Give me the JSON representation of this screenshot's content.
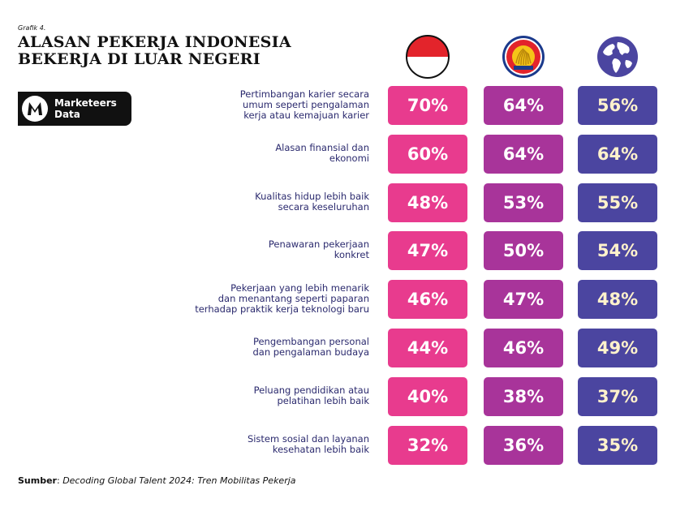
{
  "grafik_label": "Grafik 4.",
  "title_lines": [
    "ALASAN PEKERJA INDONESIA",
    "BEKERJA DI LUAR NEGERI"
  ],
  "badge": {
    "line1": "Marketeers",
    "line2": "Data"
  },
  "column_icons": [
    "indonesia-flag-icon",
    "asean-emblem-icon",
    "globe-icon"
  ],
  "colors": {
    "indonesia": "#e83b8e",
    "asean": "#a8349a",
    "global": "#4b45a0",
    "label": "#2b2a6e"
  },
  "chart_data": {
    "type": "table",
    "title": "ALASAN PEKERJA INDONESIA BEKERJA DI LUAR NEGERI",
    "series_names": [
      "Indonesia",
      "ASEAN",
      "Global"
    ],
    "rows": [
      {
        "label_lines": [
          "Pertimbangan karier secara",
          "umum seperti pengalaman",
          "kerja atau kemajuan karier"
        ],
        "values": [
          "70%",
          "64%",
          "56%"
        ]
      },
      {
        "label_lines": [
          "Alasan finansial dan",
          "ekonomi"
        ],
        "values": [
          "60%",
          "64%",
          "64%"
        ]
      },
      {
        "label_lines": [
          "Kualitas hidup lebih baik",
          "secara keseluruhan"
        ],
        "values": [
          "48%",
          "53%",
          "55%"
        ]
      },
      {
        "label_lines": [
          "Penawaran pekerjaan",
          "konkret"
        ],
        "values": [
          "47%",
          "50%",
          "54%"
        ]
      },
      {
        "label_lines": [
          "Pekerjaan yang lebih menarik",
          "dan menantang seperti paparan",
          "terhadap praktik kerja teknologi baru"
        ],
        "values": [
          "46%",
          "47%",
          "48%"
        ]
      },
      {
        "label_lines": [
          "Pengembangan personal",
          "dan pengalaman budaya"
        ],
        "values": [
          "44%",
          "46%",
          "49%"
        ]
      },
      {
        "label_lines": [
          "Peluang pendidikan atau",
          "pelatihan lebih baik"
        ],
        "values": [
          "40%",
          "38%",
          "37%"
        ]
      },
      {
        "label_lines": [
          "Sistem sosial dan layanan",
          "kesehatan lebih baik"
        ],
        "values": [
          "32%",
          "36%",
          "35%"
        ]
      }
    ]
  },
  "source": {
    "label": "Sumber",
    "text": "Decoding Global Talent 2024: Tren Mobilitas Pekerja"
  }
}
